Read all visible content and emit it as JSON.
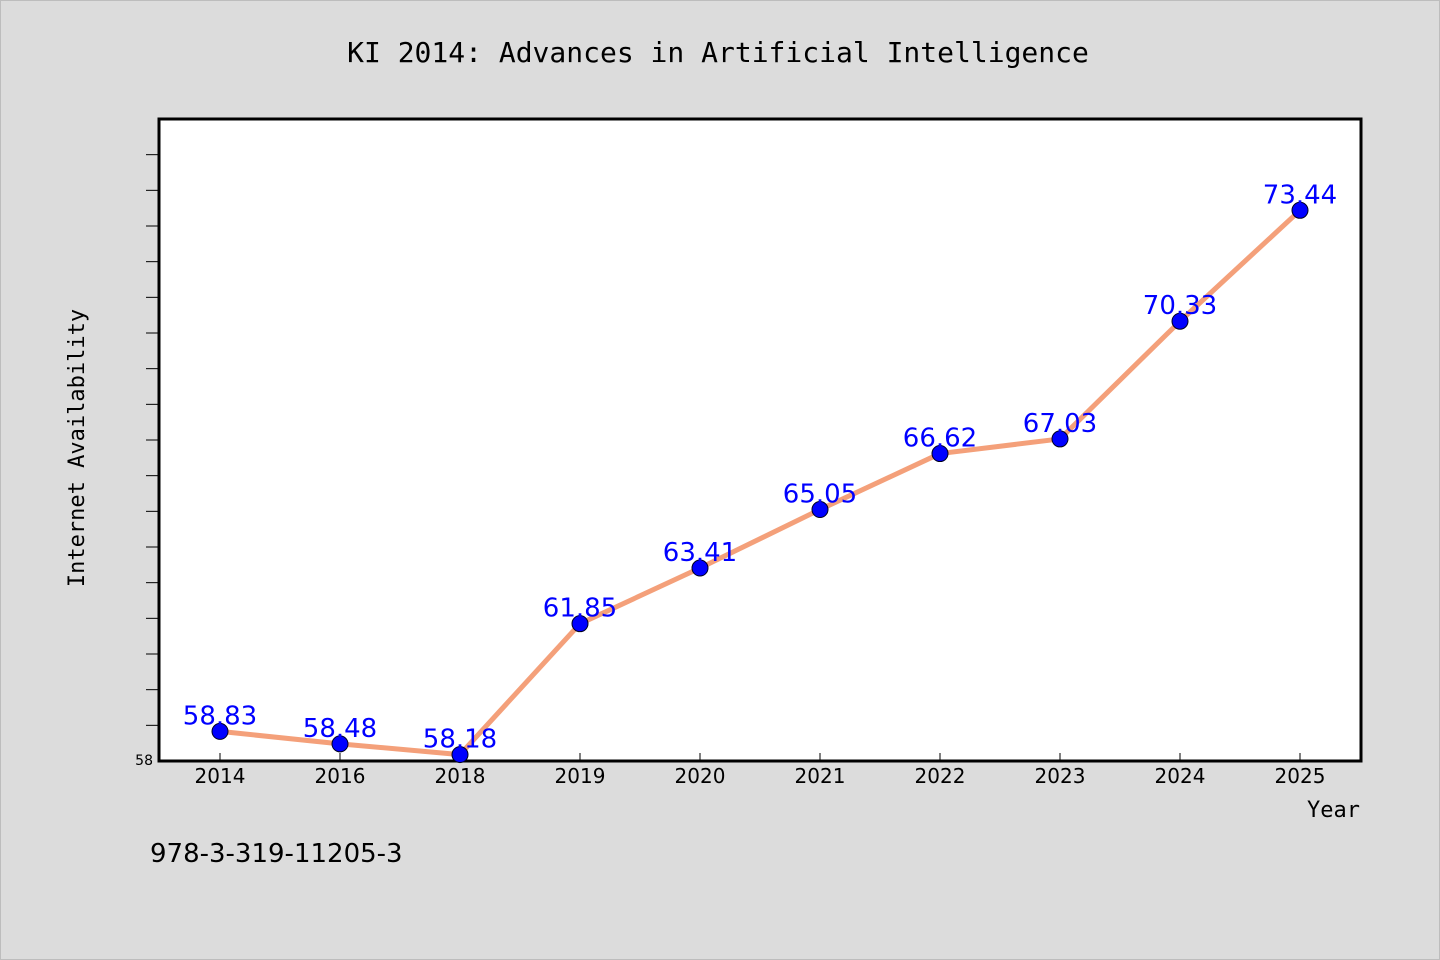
{
  "footer_text": "978-3-319-11205-3",
  "colors": {
    "background": "#dcdcdc",
    "plot_background": "#ffffff",
    "line": "#f4a07a",
    "marker": "#0000ff",
    "data_label": "#0000ff"
  },
  "chart_data": {
    "type": "line",
    "title": "KI 2014: Advances in Artificial Intelligence",
    "xlabel": "Year",
    "ylabel": "Internet Availability",
    "categories": [
      "2014",
      "2016",
      "2018",
      "2019",
      "2020",
      "2021",
      "2022",
      "2023",
      "2024",
      "2025"
    ],
    "series": [
      {
        "values": [
          58.83,
          58.48,
          58.18,
          61.85,
          63.41,
          65.05,
          66.62,
          67.03,
          70.33,
          73.44
        ]
      }
    ],
    "data_labels": [
      "58.83",
      "58.48",
      "58.18",
      "61.85",
      "63.41",
      "65.05",
      "66.62",
      "67.03",
      "70.33",
      "73.44"
    ],
    "y_tick_labels": [
      "58"
    ],
    "ylim": [
      58,
      76
    ],
    "grid": false,
    "legend": "none"
  }
}
